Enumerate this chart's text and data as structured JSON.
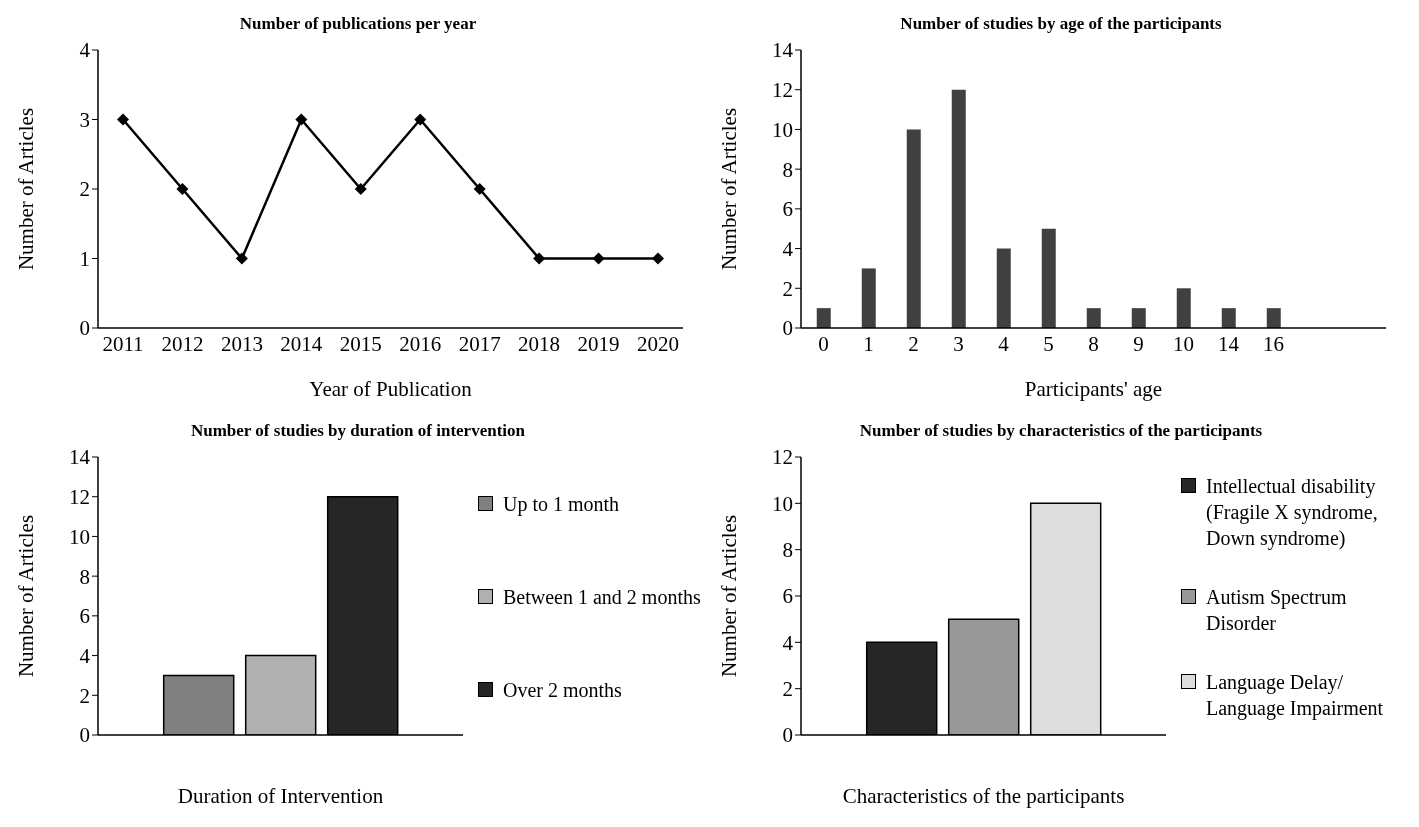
{
  "chart_data": [
    {
      "type": "line",
      "title": "Number of publications per year",
      "xlabel": "Year of Publication",
      "ylabel": "Number of Articles",
      "categories": [
        "2011",
        "2012",
        "2013",
        "2014",
        "2015",
        "2016",
        "2017",
        "2018",
        "2019",
        "2020"
      ],
      "values": [
        3,
        2,
        1,
        3,
        2,
        3,
        2,
        1,
        1,
        1
      ],
      "color": "#000000",
      "marker": "diamond",
      "ylim": [
        0,
        4
      ],
      "yticks": [
        0,
        1,
        2,
        3,
        4
      ],
      "legend": false
    },
    {
      "type": "bar",
      "title": "Number of studies by age of the participants",
      "xlabel": "Participants' age",
      "ylabel": "Number of Articles",
      "categories": [
        "0",
        "1",
        "2",
        "3",
        "4",
        "5",
        "8",
        "9",
        "10",
        "14",
        "16",
        null,
        null
      ],
      "values": [
        1,
        3,
        10,
        12,
        4,
        5,
        1,
        1,
        2,
        1,
        1,
        null,
        null
      ],
      "color": "#404040",
      "ylim": [
        0,
        14
      ],
      "yticks": [
        0,
        2,
        4,
        6,
        8,
        10,
        12,
        14
      ],
      "legend": false
    },
    {
      "type": "bar",
      "title": "Number of studies by duration of intervention",
      "xlabel": "Duration of Intervention",
      "ylabel": "Number of Articles",
      "categories": [
        null
      ],
      "series": [
        {
          "name": "Up to 1 month",
          "color": "#808080",
          "values": [
            3
          ]
        },
        {
          "name": "Between 1 and 2 months",
          "color": "#b0b0b0",
          "values": [
            4
          ]
        },
        {
          "name": "Over 2 months",
          "color": "#262626",
          "values": [
            12
          ]
        }
      ],
      "ylim": [
        0,
        14
      ],
      "yticks": [
        0,
        2,
        4,
        6,
        8,
        10,
        12,
        14
      ],
      "legend": "right"
    },
    {
      "type": "bar",
      "title": "Number of studies by characteristics of the participants",
      "xlabel": "Characteristics of the participants",
      "ylabel": "Number of Articles",
      "categories": [
        null
      ],
      "series": [
        {
          "name": "Intellectual disability (Fragile X syndrome, Down syndrome)",
          "color": "#262626",
          "values": [
            4
          ]
        },
        {
          "name": "Autism Spectrum Disorder",
          "color": "#999999",
          "values": [
            5
          ]
        },
        {
          "name": "Language Delay/ Language Impairment",
          "color": "#dddddd",
          "values": [
            10
          ]
        }
      ],
      "ylim": [
        0,
        12
      ],
      "yticks": [
        0,
        2,
        4,
        6,
        8,
        10,
        12
      ],
      "legend": "right"
    }
  ]
}
